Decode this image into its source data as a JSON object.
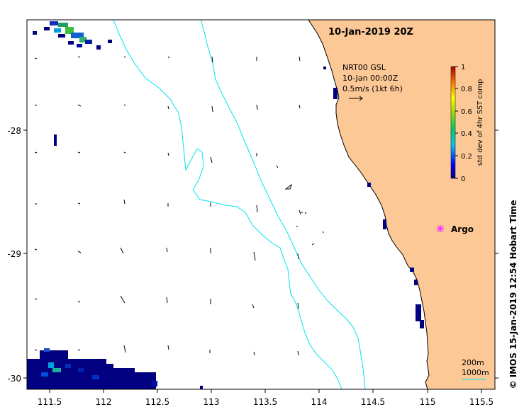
{
  "chart_data": {
    "type": "map",
    "title": "10-Jan-2019 20Z",
    "x_ticks": [
      "111.5",
      "112",
      "112.5",
      "113",
      "113.5",
      "114",
      "114.5",
      "115",
      "115.5"
    ],
    "y_ticks": [
      "-28",
      "-29",
      "-30"
    ],
    "xlim": [
      111.3,
      115.6
    ],
    "ylim": [
      -30.08,
      -27.1
    ],
    "current_legend": {
      "line1": "NRT00 GSL",
      "line2": "10-Jan 00:00Z",
      "line3": "0.5m/s (1kt 6h)"
    },
    "colorbar": {
      "label": "std dev of 4hr SST comp",
      "ticks": [
        "0",
        "0.2",
        "0.4",
        "0.6",
        "0.8",
        "1"
      ],
      "range": [
        0,
        1
      ]
    },
    "argo": {
      "label": "Argo",
      "lon": 115.1,
      "lat": -28.82,
      "color": "#ff33ff"
    },
    "isobaths": {
      "line1": "200m",
      "line2": "1000m",
      "color": "#00e5ee"
    },
    "land_color": "#fcc896",
    "credit": "© IMOS 15-Jan-2019 12:54 Hobart Time"
  }
}
